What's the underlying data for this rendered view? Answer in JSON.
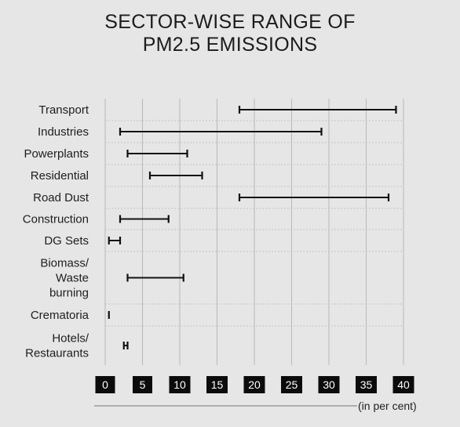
{
  "chart_data": {
    "type": "range",
    "title": [
      "SECTOR-WISE RANGE OF",
      "PM2.5 EMISSIONS"
    ],
    "unit_label": "(in per cent)",
    "xlim": [
      0,
      40
    ],
    "xticks": [
      0,
      5,
      10,
      15,
      20,
      25,
      30,
      35,
      40
    ],
    "grid": "vertical dashed",
    "categories": [
      "Transport",
      "Industries",
      "Powerplants",
      "Residential",
      "Road Dust",
      "Construction",
      "DG Sets",
      "Biomass/\nWaste\nburning",
      "Crematoria",
      "Hotels/\nRestaurants"
    ],
    "ranges": [
      [
        18,
        39
      ],
      [
        2,
        29
      ],
      [
        3,
        11
      ],
      [
        6,
        13
      ],
      [
        18,
        38
      ],
      [
        2,
        8.5
      ],
      [
        0.5,
        2
      ],
      [
        3,
        10.5
      ],
      [
        0.5,
        0.5
      ],
      [
        2.5,
        3
      ]
    ]
  }
}
